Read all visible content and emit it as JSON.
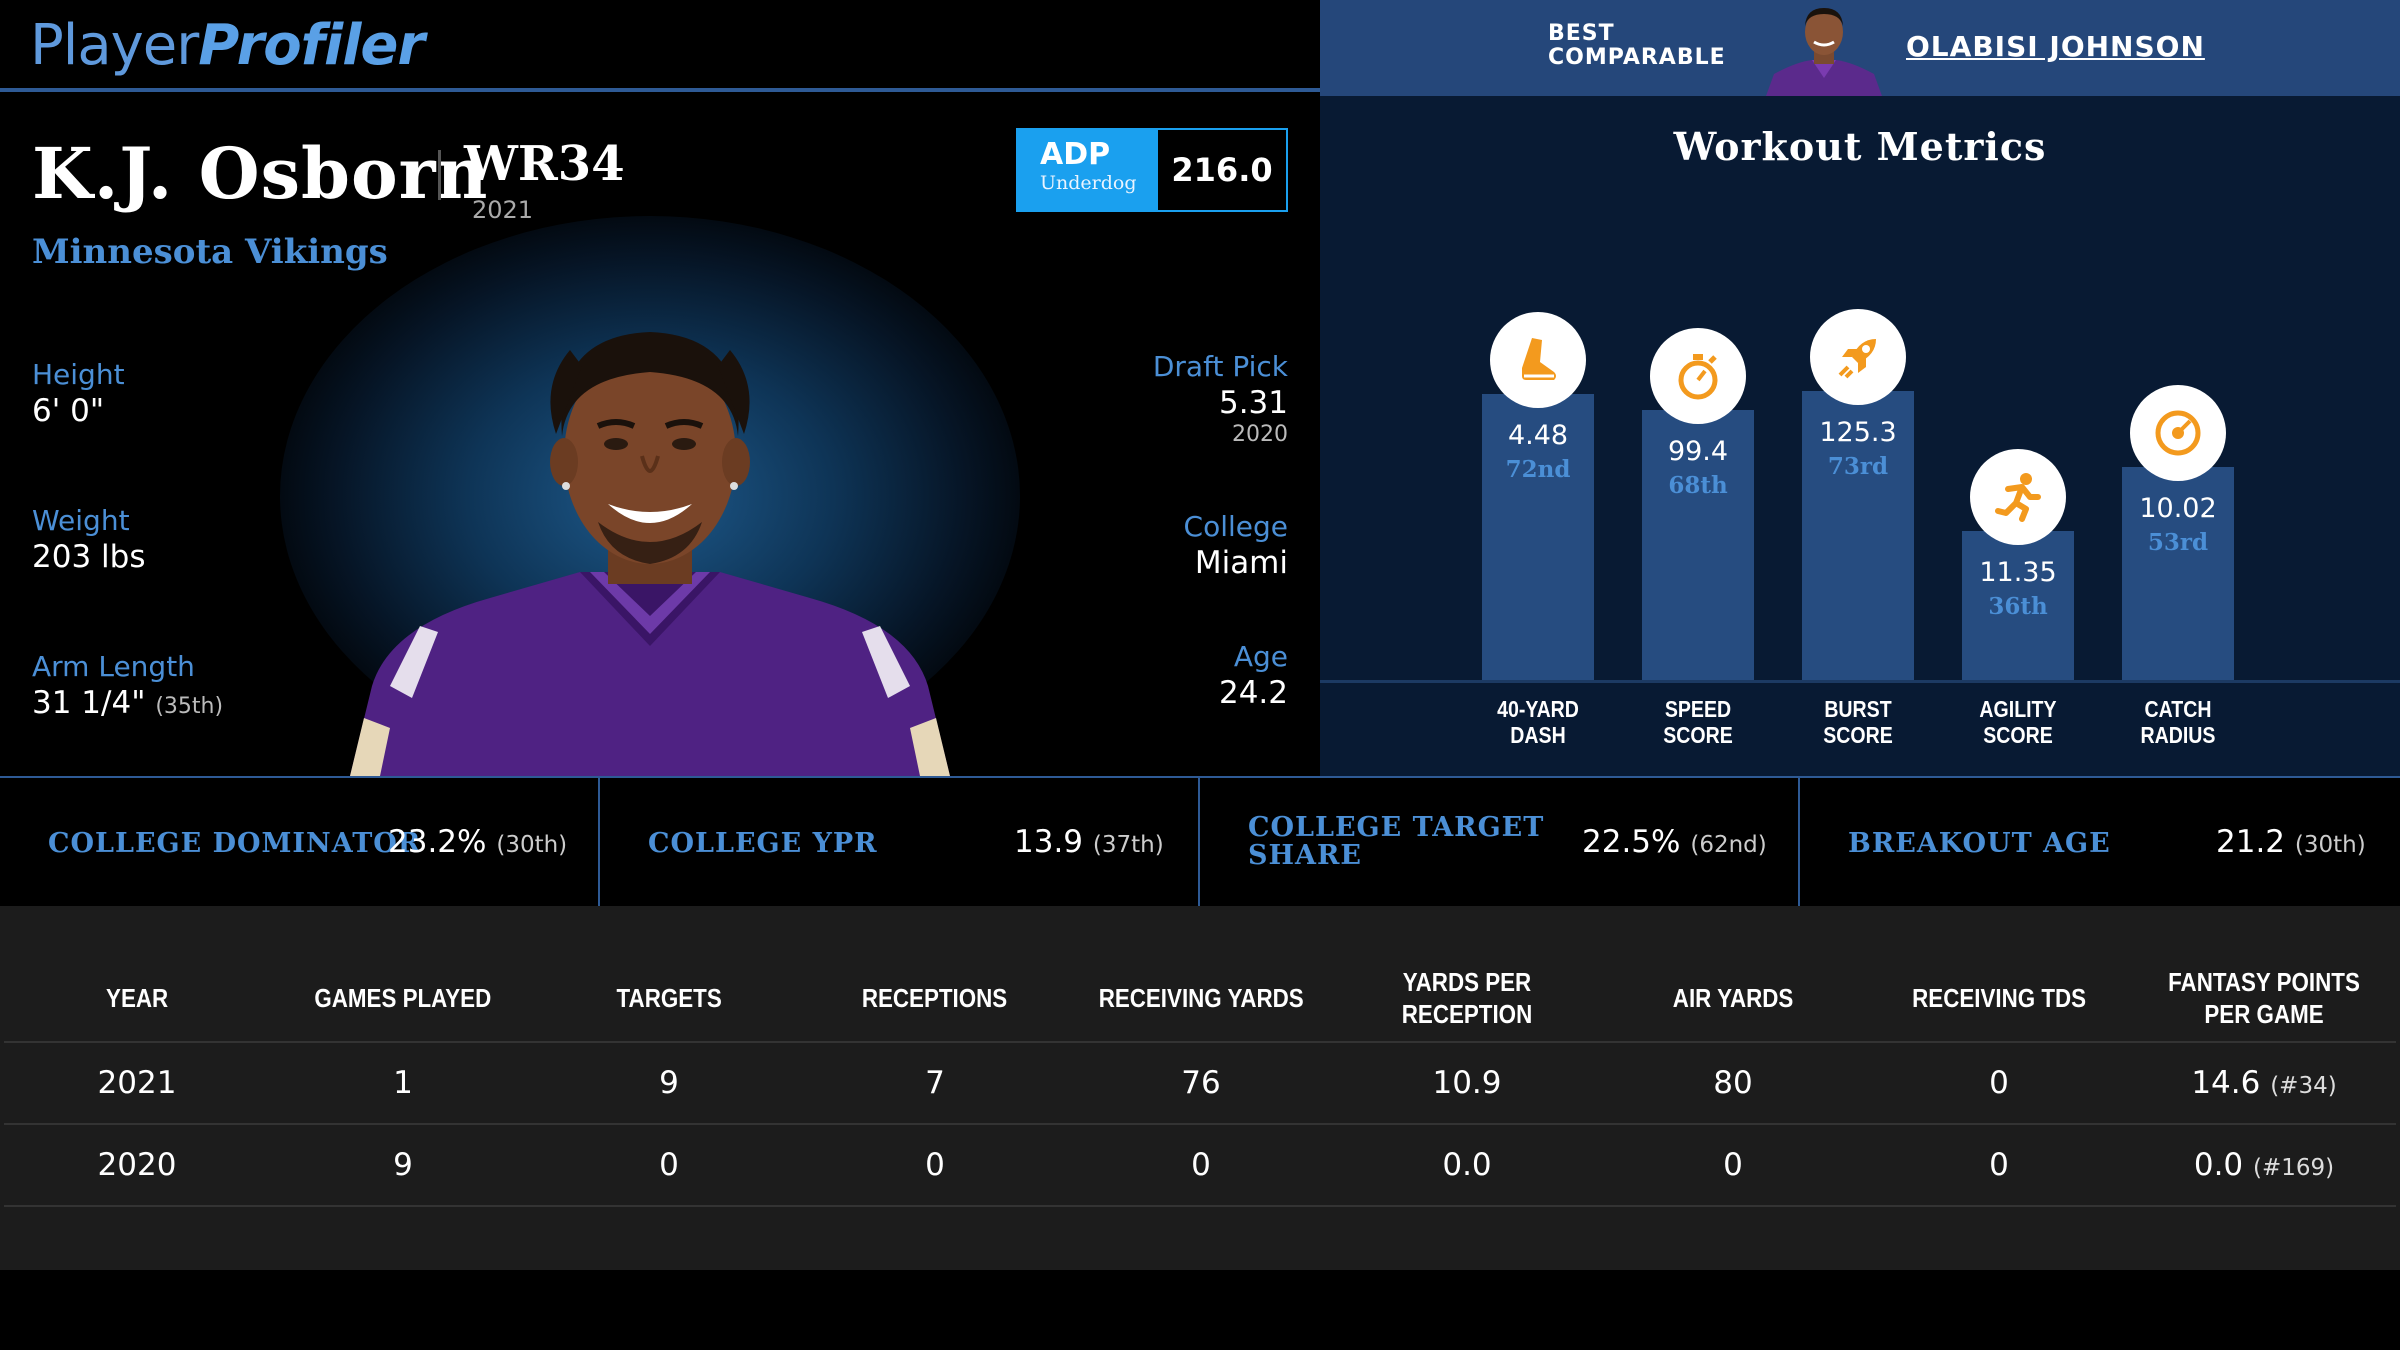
{
  "brand": {
    "logo_regular": "Player",
    "logo_bold": "Profiler"
  },
  "comparable": {
    "label_line1": "BEST",
    "label_line2": "COMPARABLE",
    "name": "OLABISI JOHNSON"
  },
  "player": {
    "name": "K.J. Osborn",
    "rank": "WR34",
    "rank_year": "2021",
    "team": "Minnesota Vikings",
    "adp": {
      "label": "ADP",
      "source": "Underdog",
      "value": "216.0"
    },
    "height": {
      "label": "Height",
      "value": "6' 0\""
    },
    "weight": {
      "label": "Weight",
      "value": "203 lbs"
    },
    "arm_length": {
      "label": "Arm Length",
      "value": "31 1/4\"",
      "pct": "(35th)"
    },
    "draft_pick": {
      "label": "Draft Pick",
      "value": "5.31",
      "year": "2020"
    },
    "college": {
      "label": "College",
      "value": "Miami"
    },
    "age": {
      "label": "Age",
      "value": "24.2"
    }
  },
  "workout": {
    "title": "Workout Metrics",
    "metrics": [
      {
        "label1": "40-YARD",
        "label2": "DASH",
        "value": "4.48",
        "pct": "72nd",
        "percentile": 72,
        "icon": "shoe-icon"
      },
      {
        "label1": "SPEED",
        "label2": "SCORE",
        "value": "99.4",
        "pct": "68th",
        "percentile": 68,
        "icon": "stopwatch-icon"
      },
      {
        "label1": "BURST",
        "label2": "SCORE",
        "value": "125.3",
        "pct": "73rd",
        "percentile": 73,
        "icon": "rocket-icon"
      },
      {
        "label1": "AGILITY",
        "label2": "SCORE",
        "value": "11.35",
        "pct": "36th",
        "percentile": 36,
        "icon": "runner-icon"
      },
      {
        "label1": "CATCH",
        "label2": "RADIUS",
        "value": "10.02",
        "pct": "53rd",
        "percentile": 53,
        "icon": "target-icon"
      }
    ]
  },
  "college_stats": [
    {
      "label1": "COLLEGE DOMINATOR",
      "label2": "",
      "value": "23.2%",
      "pct": "(30th)"
    },
    {
      "label1": "COLLEGE YPR",
      "label2": "",
      "value": "13.9",
      "pct": "(37th)"
    },
    {
      "label1": "COLLEGE TARGET",
      "label2": "SHARE",
      "value": "22.5%",
      "pct": "(62nd)"
    },
    {
      "label1": "BREAKOUT AGE",
      "label2": "",
      "value": "21.2",
      "pct": "(30th)"
    }
  ],
  "table": {
    "headers": [
      "YEAR",
      "GAMES PLAYED",
      "TARGETS",
      "RECEPTIONS",
      "RECEIVING YARDS",
      "YARDS PER RECEPTION",
      "AIR YARDS",
      "RECEIVING TDS",
      "FANTASY POINTS PER GAME"
    ],
    "rows": [
      {
        "year": "2021",
        "games": "1",
        "targets": "9",
        "receptions": "7",
        "yards": "76",
        "ypr": "10.9",
        "air": "80",
        "tds": "0",
        "fppg": "14.6",
        "rank": "(#34)"
      },
      {
        "year": "2020",
        "games": "9",
        "targets": "0",
        "receptions": "0",
        "yards": "0",
        "ypr": "0.0",
        "air": "0",
        "tds": "0",
        "fppg": "0.0",
        "rank": "(#169)"
      }
    ]
  }
}
